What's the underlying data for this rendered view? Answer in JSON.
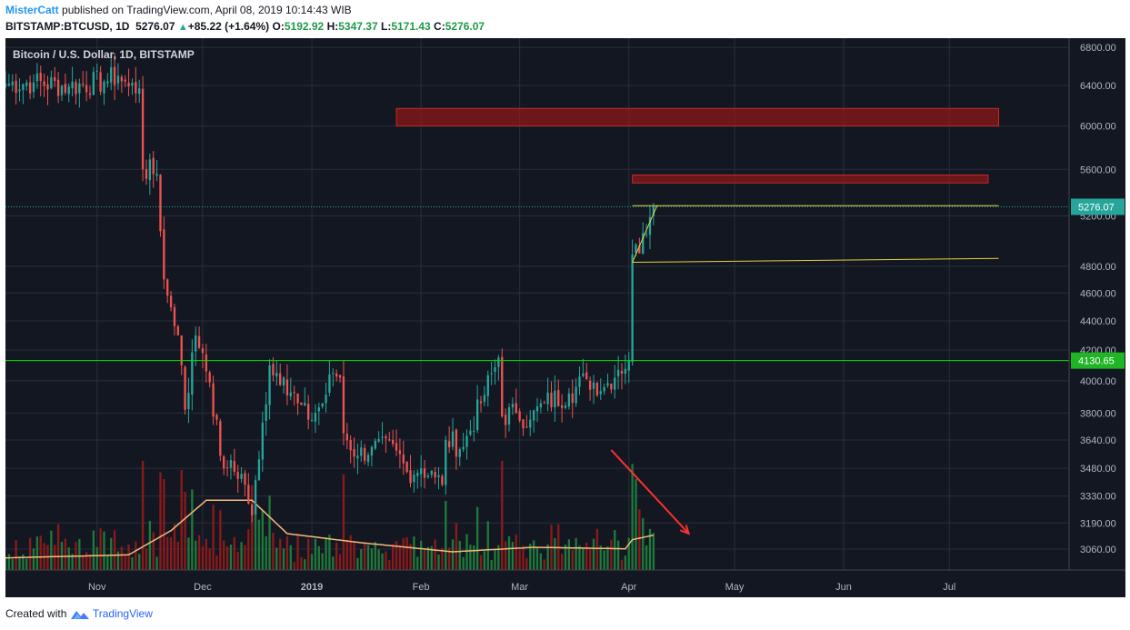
{
  "header": {
    "author": "MisterCatt",
    "published_text": "published on TradingView.com, April 08, 2019 10:14:43 WIB",
    "symbol": "BITSTAMP:BTCUSD, 1D",
    "last": "5276.07",
    "change": "+85.22 (+1.64%)",
    "o_label": "O:",
    "o_value": "5192.92",
    "h_label": "H:",
    "h_value": "5347.37",
    "l_label": "L:",
    "l_value": "5171.43",
    "c_label": "C:",
    "c_value": "5276.07"
  },
  "chart": {
    "legend_title": "Bitcoin / U.S. Dollar, 1D, BITSTAMP",
    "price_tag_last": "5276.07",
    "price_tag_support": "4130.65",
    "colors": {
      "background": "#131722",
      "grid": "#2a2e39",
      "up": "#26a69a",
      "down": "#ef5350",
      "vol_up": "#1e7a3a",
      "vol_down": "#8b1a1a",
      "ma": "#f5b97a",
      "zone": "#8b1a1a",
      "support": "#00e600",
      "triangle": "#e6d23c",
      "arrow": "#ff3030",
      "axis_text": "#b2b5be"
    }
  },
  "footer": {
    "created_with": "Created with",
    "brand": "TradingView"
  },
  "chart_data": {
    "type": "candlestick",
    "title": "Bitcoin / U.S. Dollar, 1D, BITSTAMP",
    "y_scale": "log",
    "ylim": [
      2960,
      6900
    ],
    "y_ticks": [
      6800,
      6400,
      6000,
      5600,
      5200,
      4800,
      4600,
      4400,
      4200,
      4000,
      3800,
      3640,
      3480,
      3330,
      3190,
      3060
    ],
    "y_tick_labels": [
      "6800.00",
      "6400.00",
      "6000.00",
      "5600.00",
      "5200.00",
      "4800.00",
      "4600.00",
      "4400.00",
      "4200.00",
      "4000.00",
      "3800.00",
      "3640.00",
      "3480.00",
      "3330.00",
      "3190.00",
      "3060.00"
    ],
    "x_labels": [
      "Nov",
      "Dec",
      "2019",
      "Feb",
      "Mar",
      "Apr",
      "May",
      "Jun",
      "Jul"
    ],
    "x_label_dates": [
      "2018-11-01",
      "2018-12-01",
      "2019-01-01",
      "2019-02-01",
      "2019-03-01",
      "2019-04-01",
      "2019-05-01",
      "2019-06-01",
      "2019-07-01"
    ],
    "xlim": [
      "2018-10-06",
      "2019-08-04"
    ],
    "close_anchors": [
      [
        "2018-10-06",
        6420
      ],
      [
        "2018-10-14",
        6430
      ],
      [
        "2018-10-24",
        6390
      ],
      [
        "2018-11-03",
        6440
      ],
      [
        "2018-11-07",
        6500
      ],
      [
        "2018-11-10",
        6390
      ],
      [
        "2018-11-13",
        6370
      ],
      [
        "2018-11-14",
        5600
      ],
      [
        "2018-11-18",
        5560
      ],
      [
        "2018-11-20",
        4700
      ],
      [
        "2018-11-21",
        4580
      ],
      [
        "2018-11-24",
        4300
      ],
      [
        "2018-11-25",
        4100
      ],
      [
        "2018-11-26",
        3820
      ],
      [
        "2018-11-29",
        4300
      ],
      [
        "2018-12-01",
        4180
      ],
      [
        "2018-12-03",
        3990
      ],
      [
        "2018-12-06",
        3550
      ],
      [
        "2018-12-08",
        3480
      ],
      [
        "2018-12-12",
        3450
      ],
      [
        "2018-12-15",
        3230
      ],
      [
        "2018-12-17",
        3530
      ],
      [
        "2018-12-20",
        4100
      ],
      [
        "2018-12-24",
        4020
      ],
      [
        "2018-12-28",
        3860
      ],
      [
        "2018-12-31",
        3760
      ],
      [
        "2019-01-04",
        3860
      ],
      [
        "2019-01-07",
        4050
      ],
      [
        "2019-01-09",
        4020
      ],
      [
        "2019-01-10",
        3680
      ],
      [
        "2019-01-14",
        3550
      ],
      [
        "2019-01-18",
        3600
      ],
      [
        "2019-01-25",
        3580
      ],
      [
        "2019-01-28",
        3460
      ],
      [
        "2019-02-01",
        3480
      ],
      [
        "2019-02-05",
        3430
      ],
      [
        "2019-02-07",
        3390
      ],
      [
        "2019-02-08",
        3640
      ],
      [
        "2019-02-13",
        3600
      ],
      [
        "2019-02-18",
        3860
      ],
      [
        "2019-02-23",
        4150
      ],
      [
        "2019-02-24",
        3780
      ],
      [
        "2019-02-28",
        3800
      ],
      [
        "2019-03-04",
        3760
      ],
      [
        "2019-03-08",
        3860
      ],
      [
        "2019-03-15",
        3920
      ],
      [
        "2019-03-20",
        4010
      ],
      [
        "2019-03-25",
        3960
      ],
      [
        "2019-03-29",
        4070
      ],
      [
        "2019-04-01",
        4130
      ],
      [
        "2019-04-02",
        4890
      ],
      [
        "2019-04-03",
        4970
      ],
      [
        "2019-04-04",
        4900
      ],
      [
        "2019-04-05",
        5060
      ],
      [
        "2019-04-06",
        5050
      ],
      [
        "2019-04-07",
        5190
      ],
      [
        "2019-04-08",
        5276
      ]
    ],
    "volume_ma_anchors": [
      [
        "2018-10-06",
        40
      ],
      [
        "2018-11-10",
        50
      ],
      [
        "2018-11-22",
        130
      ],
      [
        "2018-12-02",
        230
      ],
      [
        "2018-12-15",
        230
      ],
      [
        "2018-12-25",
        120
      ],
      [
        "2019-01-15",
        90
      ],
      [
        "2019-02-10",
        60
      ],
      [
        "2019-03-05",
        75
      ],
      [
        "2019-03-31",
        70
      ],
      [
        "2019-04-02",
        100
      ],
      [
        "2019-04-08",
        115
      ]
    ],
    "volume_spikes": [
      [
        "2018-11-20",
        300
      ],
      [
        "2018-11-25",
        330
      ],
      [
        "2018-12-15",
        280
      ],
      [
        "2019-04-02",
        350
      ],
      [
        "2019-04-03",
        300
      ],
      [
        "2019-04-04",
        200
      ]
    ],
    "resistance_zones": [
      {
        "from": "2019-01-25",
        "to": "2019-07-15",
        "low": 6000,
        "high": 6170
      },
      {
        "from": "2019-04-02",
        "to": "2019-07-12",
        "low": 5480,
        "high": 5550
      }
    ],
    "support_level": 4130.65,
    "last_price": 5276.07,
    "triangle": {
      "apex": [
        "2019-04-02",
        4830
      ],
      "top_left": [
        "2019-04-02",
        5285
      ],
      "top_right": [
        "2019-07-15",
        5285
      ],
      "bottom_right": [
        "2019-07-15",
        4860
      ],
      "top_join": [
        "2019-04-09",
        5285
      ]
    }
  }
}
